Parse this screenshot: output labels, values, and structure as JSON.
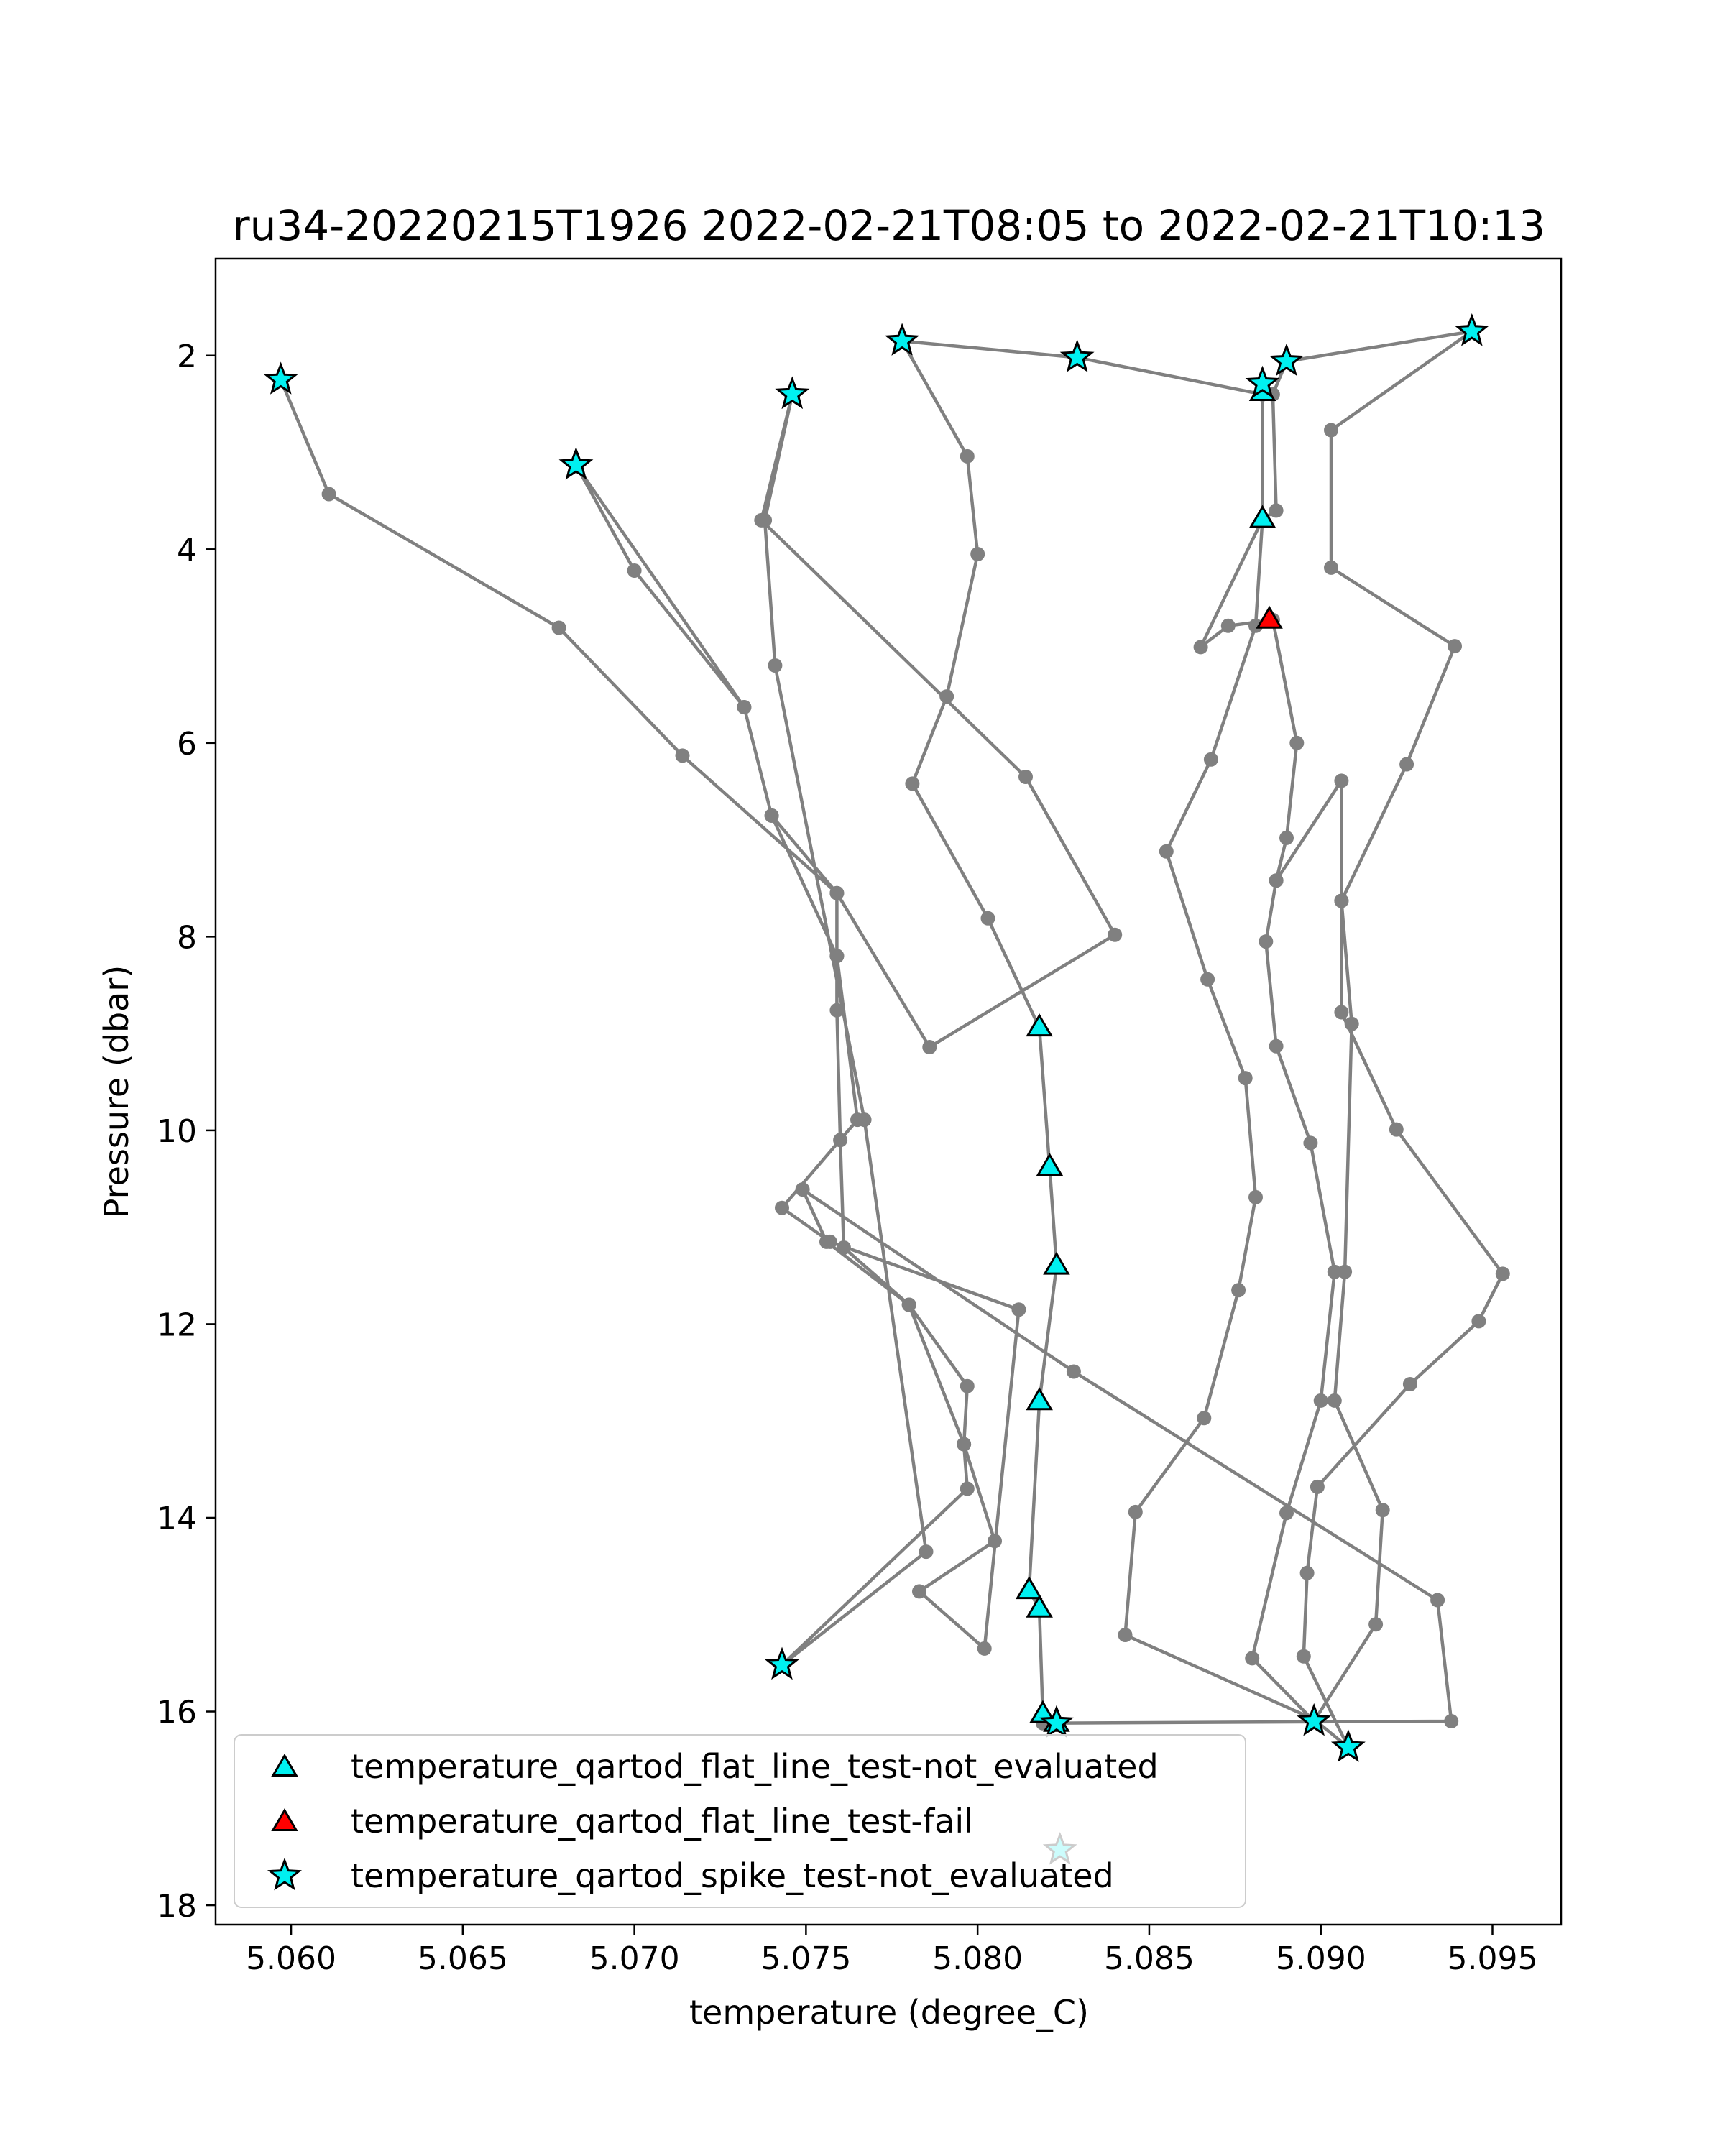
{
  "chart_data": {
    "type": "scatter",
    "title": "ru34-20220215T1926 2022-02-21T08:05 to 2022-02-21T10:13",
    "xlabel": "temperature (degree_C)",
    "ylabel": "Pressure (dbar)",
    "xlim": [
      5.0578,
      5.097
    ],
    "ylim": [
      18.2,
      1.0
    ],
    "y_inverted": true,
    "x_ticks": [
      "5.060",
      "5.065",
      "5.070",
      "5.075",
      "5.080",
      "5.085",
      "5.090",
      "5.095"
    ],
    "x_tick_values": [
      5.06,
      5.065,
      5.07,
      5.075,
      5.08,
      5.085,
      5.09,
      5.095
    ],
    "y_ticks": [
      "2",
      "4",
      "6",
      "8",
      "10",
      "12",
      "14",
      "16",
      "18"
    ],
    "y_tick_values": [
      2,
      4,
      6,
      8,
      10,
      12,
      14,
      16,
      18
    ],
    "grid": false,
    "legend_position": "lower-left",
    "colors": {
      "line": "#808080",
      "not_evaluated": "#00f0f0",
      "fail": "#ff0000",
      "edge": "#000000"
    },
    "profile_path": [
      [
        5.0597,
        2.25
      ],
      [
        5.0611,
        3.43
      ],
      [
        5.0678,
        4.81
      ],
      [
        5.0714,
        6.13
      ],
      [
        5.0759,
        7.55
      ],
      [
        5.0759,
        8.2
      ],
      [
        5.0765,
        9.89
      ],
      [
        5.0743,
        10.8
      ],
      [
        5.0757,
        11.15
      ],
      [
        5.0812,
        11.85
      ],
      [
        5.0802,
        15.35
      ],
      [
        5.0783,
        14.76
      ],
      [
        5.0805,
        14.24
      ],
      [
        5.0796,
        13.24
      ],
      [
        5.078,
        11.8
      ],
      [
        5.0761,
        11.21
      ],
      [
        5.076,
        10.1
      ],
      [
        5.0759,
        8.76
      ],
      [
        5.0759,
        8.2
      ],
      [
        5.074,
        6.75
      ],
      [
        5.0732,
        5.63
      ],
      [
        5.0683,
        3.13
      ],
      [
        5.07,
        4.22
      ],
      [
        5.0732,
        5.63
      ],
      [
        5.074,
        6.75
      ],
      [
        5.0759,
        7.55
      ],
      [
        5.0786,
        9.14
      ],
      [
        5.084,
        7.98
      ],
      [
        5.0814,
        6.35
      ],
      [
        5.0737,
        3.7
      ],
      [
        5.0746,
        2.4
      ],
      [
        5.0738,
        3.7
      ],
      [
        5.0741,
        5.2
      ],
      [
        5.0767,
        9.89
      ],
      [
        5.0785,
        14.35
      ],
      [
        5.0743,
        15.52
      ],
      [
        5.0797,
        13.7
      ],
      [
        5.0796,
        13.24
      ],
      [
        5.0797,
        12.64
      ],
      [
        5.078,
        11.8
      ],
      [
        5.0756,
        11.15
      ],
      [
        5.0749,
        10.61
      ],
      [
        5.0828,
        12.49
      ],
      [
        5.0934,
        14.85
      ],
      [
        5.0938,
        16.1
      ],
      [
        5.0819,
        16.12
      ],
      [
        5.0819,
        16.03
      ],
      [
        5.0818,
        14.94
      ],
      [
        5.0815,
        14.75
      ],
      [
        5.0818,
        12.8
      ],
      [
        5.0823,
        11.4
      ],
      [
        5.0821,
        10.38
      ],
      [
        5.0818,
        8.94
      ],
      [
        5.0803,
        7.81
      ],
      [
        5.0781,
        6.42
      ],
      [
        5.0791,
        5.52
      ],
      [
        5.08,
        4.05
      ],
      [
        5.0797,
        3.04
      ],
      [
        5.0778,
        1.85
      ],
      [
        5.0829,
        2.02
      ],
      [
        5.0883,
        2.4
      ],
      [
        5.0883,
        2.29
      ],
      [
        5.0883,
        3.69
      ],
      [
        5.0881,
        4.79
      ],
      [
        5.0868,
        6.17
      ],
      [
        5.0855,
        7.12
      ],
      [
        5.0867,
        8.44
      ],
      [
        5.0878,
        9.46
      ],
      [
        5.0881,
        10.69
      ],
      [
        5.0876,
        11.65
      ],
      [
        5.0866,
        12.97
      ],
      [
        5.0846,
        13.94
      ],
      [
        5.0843,
        15.21
      ],
      [
        5.0898,
        16.08
      ],
      [
        5.0908,
        16.37
      ],
      [
        5.0895,
        15.43
      ],
      [
        5.0896,
        14.57
      ],
      [
        5.0899,
        13.68
      ],
      [
        5.0926,
        12.62
      ],
      [
        5.0946,
        11.97
      ],
      [
        5.0953,
        11.48
      ],
      [
        5.0922,
        9.99
      ],
      [
        5.0906,
        8.78
      ],
      [
        5.0906,
        7.63
      ],
      [
        5.0906,
        6.39
      ],
      [
        5.0887,
        7.42
      ],
      [
        5.0884,
        8.05
      ],
      [
        5.0887,
        9.13
      ],
      [
        5.0897,
        10.13
      ],
      [
        5.0904,
        11.46
      ],
      [
        5.09,
        12.79
      ],
      [
        5.089,
        13.95
      ],
      [
        5.088,
        15.45
      ],
      [
        5.0898,
        16.1
      ],
      [
        5.0916,
        15.1
      ],
      [
        5.0918,
        13.92
      ],
      [
        5.0904,
        12.79
      ],
      [
        5.0907,
        11.46
      ],
      [
        5.0909,
        8.9
      ],
      [
        5.0906,
        7.63
      ],
      [
        5.0925,
        6.22
      ],
      [
        5.0939,
        5.0
      ],
      [
        5.0903,
        4.19
      ],
      [
        5.0903,
        2.77
      ],
      [
        5.0944,
        1.75
      ],
      [
        5.089,
        2.06
      ],
      [
        5.0886,
        2.4
      ],
      [
        5.0887,
        3.6
      ],
      [
        5.0883,
        3.69
      ],
      [
        5.0865,
        5.01
      ],
      [
        5.0873,
        4.79
      ],
      [
        5.0886,
        4.73
      ],
      [
        5.0893,
        6.0
      ],
      [
        5.089,
        6.98
      ],
      [
        5.0887,
        7.42
      ]
    ],
    "spike_not_evaluated": [
      [
        5.0597,
        2.25
      ],
      [
        5.0683,
        3.13
      ],
      [
        5.0746,
        2.4
      ],
      [
        5.0778,
        1.85
      ],
      [
        5.0829,
        2.02
      ],
      [
        5.0883,
        2.29
      ],
      [
        5.089,
        2.06
      ],
      [
        5.0944,
        1.75
      ],
      [
        5.0743,
        15.52
      ],
      [
        5.0823,
        16.12
      ],
      [
        5.0898,
        16.1
      ],
      [
        5.0908,
        16.37
      ],
      [
        5.0824,
        17.43
      ]
    ],
    "flat_line_not_evaluated": [
      [
        5.0883,
        2.38
      ],
      [
        5.0883,
        3.69
      ],
      [
        5.0818,
        8.94
      ],
      [
        5.0821,
        10.38
      ],
      [
        5.0823,
        11.4
      ],
      [
        5.0818,
        12.8
      ],
      [
        5.0815,
        14.75
      ],
      [
        5.0818,
        14.94
      ],
      [
        5.0819,
        16.03
      ],
      [
        5.0823,
        16.12
      ]
    ],
    "flat_line_fail": [
      [
        5.0885,
        4.73
      ]
    ],
    "legend": [
      {
        "label": "temperature_qartod_flat_line_test-not_evaluated",
        "marker": "triangle",
        "color": "#00f0f0"
      },
      {
        "label": "temperature_qartod_flat_line_test-fail",
        "marker": "triangle",
        "color": "#ff0000"
      },
      {
        "label": "temperature_qartod_spike_test-not_evaluated",
        "marker": "star",
        "color": "#00f0f0"
      }
    ]
  }
}
